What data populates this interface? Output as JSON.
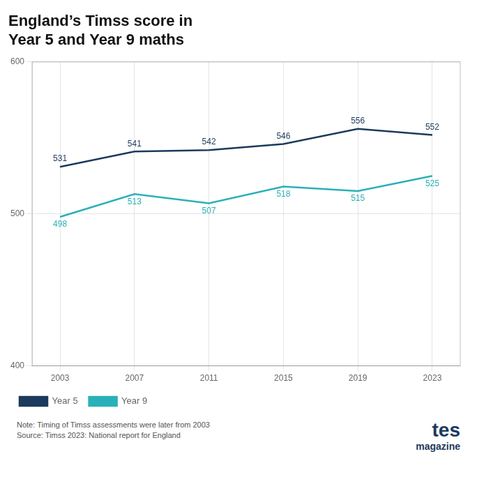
{
  "chart_data": {
    "type": "line",
    "title": "England’s Timss score in\nYear 5 and Year 9 maths",
    "x": [
      2003,
      2007,
      2011,
      2015,
      2019,
      2023
    ],
    "xlim": [
      2001.5,
      2024.5
    ],
    "xticks": [
      2003,
      2007,
      2011,
      2015,
      2019,
      2023
    ],
    "ylim": [
      400,
      600
    ],
    "yticks": [
      400,
      500,
      600
    ],
    "series": [
      {
        "name": "Year 5",
        "color": "#1b3a5c",
        "values": [
          531,
          541,
          542,
          546,
          556,
          552
        ],
        "marker": "none"
      },
      {
        "name": "Year 9",
        "color": "#2ab0b8",
        "values": [
          498,
          513,
          507,
          518,
          515,
          525
        ],
        "marker": "none"
      }
    ],
    "grid": true,
    "legend": "bottom",
    "data_labels": true,
    "annotations": [
      "Note: Timing of Timss assessments were later from 2003\nSource: Timss 2023: National report for England",
      "tes",
      "magazine"
    ]
  }
}
